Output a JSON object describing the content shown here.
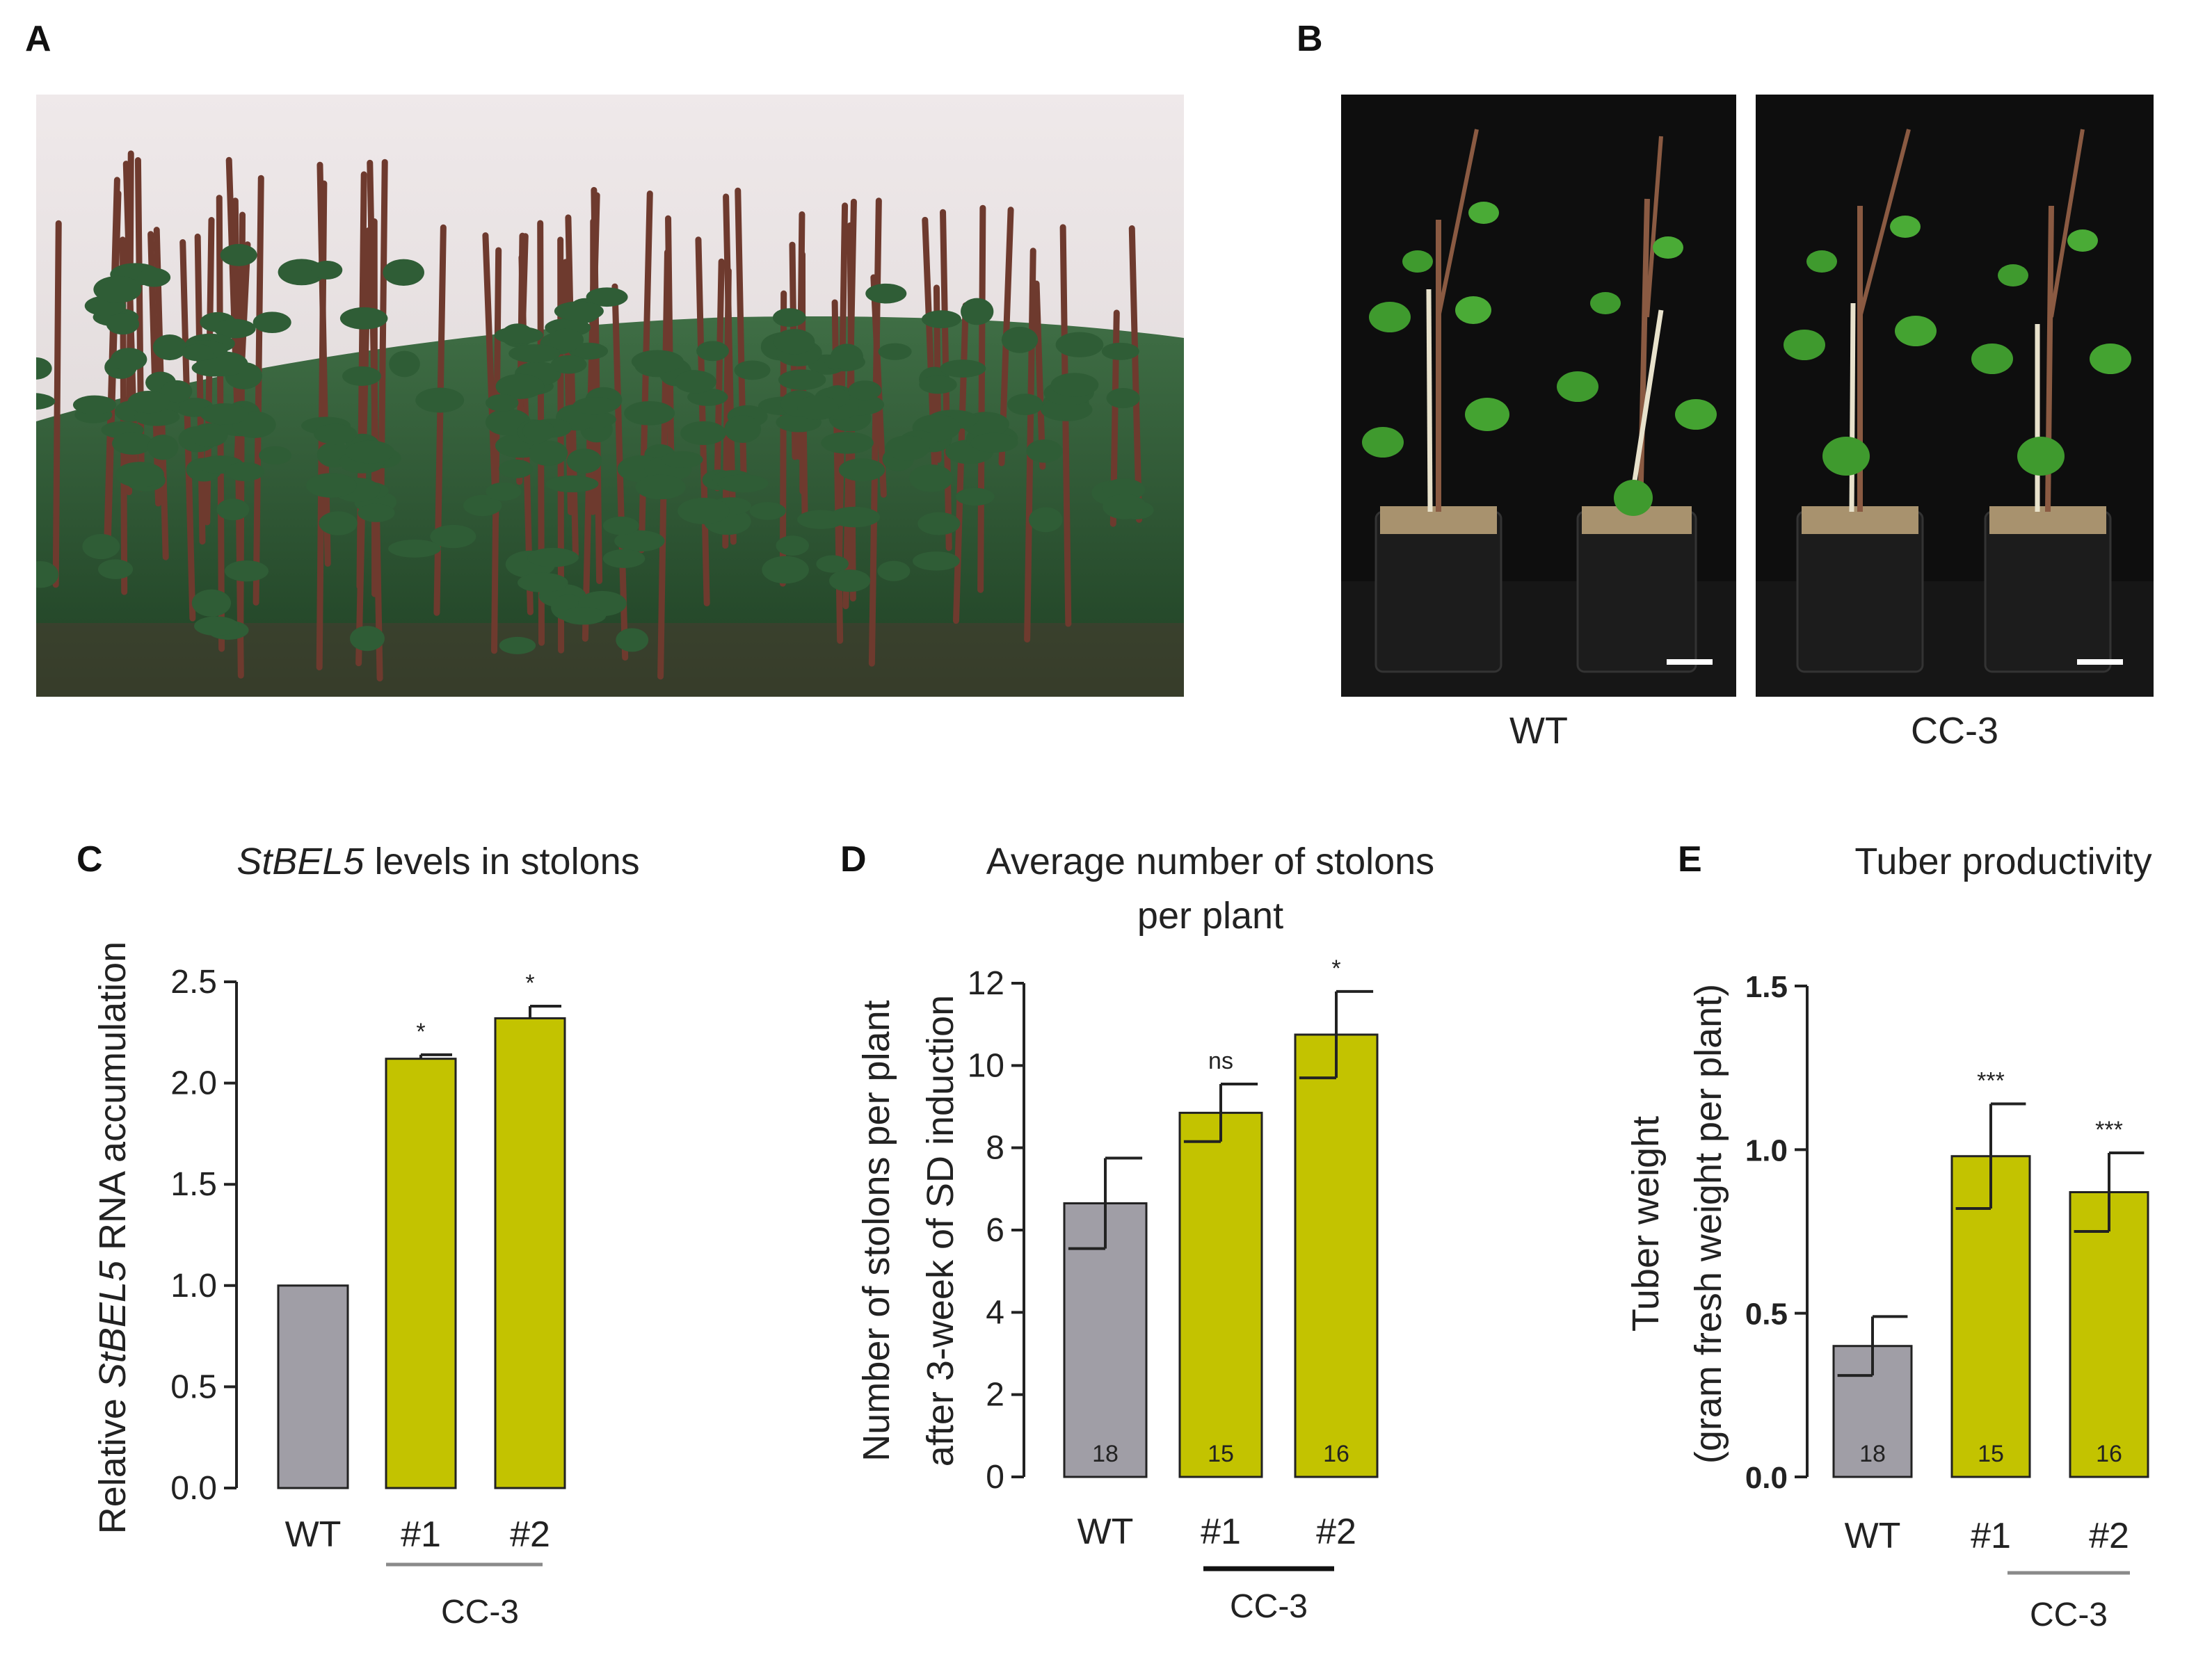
{
  "panels": {
    "a": {
      "letter": "A"
    },
    "b": {
      "letter": "B",
      "captions": [
        "WT",
        "CC-3"
      ]
    },
    "c": {
      "letter": "C",
      "title_italic": "StBEL5",
      "title_rest": " levels in stolons"
    },
    "d": {
      "letter": "D",
      "title_line1": "Average number of stolons",
      "title_line2": "per plant"
    },
    "e": {
      "letter": "E",
      "title": "Tuber productivity"
    }
  },
  "colors": {
    "wt_bar": "#a09ea6",
    "cc3_bar": "#c3c300",
    "axis": "#222222",
    "group_line_gray": "#8a8a8a",
    "group_line_black": "#111111"
  },
  "chart_data": [
    {
      "type": "bar",
      "id": "C",
      "title": "StBEL5 levels in stolons",
      "ylabel_parts": [
        "Relative ",
        "StBEL5",
        " RNA accumulation"
      ],
      "categories": [
        "WT",
        "#1",
        "#2"
      ],
      "values": [
        1.0,
        2.12,
        2.32
      ],
      "errors": [
        0,
        0.02,
        0.06
      ],
      "significance": [
        "",
        "*",
        "*"
      ],
      "n": [
        "",
        "",
        ""
      ],
      "ylim": [
        0,
        2.5
      ],
      "yticks": [
        0.0,
        0.5,
        1.0,
        1.5,
        2.0,
        2.5
      ],
      "ytick_labels": [
        "0.0",
        "0.5",
        "1.0",
        "1.5",
        "2.0",
        "2.5"
      ],
      "group_label": "CC-3"
    },
    {
      "type": "bar",
      "id": "D",
      "title": "Average number of stolons per plant",
      "ylabel_line1": "Number of stolons per plant",
      "ylabel_line2": "after 3-week of SD induction",
      "categories": [
        "WT",
        "#1",
        "#2"
      ],
      "values": [
        6.65,
        8.85,
        10.75
      ],
      "errors": [
        1.1,
        0.7,
        1.05
      ],
      "significance": [
        "",
        "ns",
        "*"
      ],
      "n": [
        "18",
        "15",
        "16"
      ],
      "ylim": [
        0,
        12
      ],
      "yticks": [
        0,
        2,
        4,
        6,
        8,
        10,
        12
      ],
      "ytick_labels": [
        "0",
        "2",
        "4",
        "6",
        "8",
        "10",
        "12"
      ],
      "group_label": "CC-3"
    },
    {
      "type": "bar",
      "id": "E",
      "title": "Tuber productivity",
      "ylabel_line1": "Tuber weight",
      "ylabel_line2": "(gram fresh weight per plant)",
      "categories": [
        "WT",
        "#1",
        "#2"
      ],
      "values": [
        0.4,
        0.98,
        0.87
      ],
      "errors": [
        0.09,
        0.16,
        0.12
      ],
      "significance": [
        "",
        "***",
        "***"
      ],
      "n": [
        "18",
        "15",
        "16"
      ],
      "ylim": [
        0,
        1.5
      ],
      "yticks": [
        0.0,
        0.5,
        1.0,
        1.5
      ],
      "ytick_labels": [
        "0.0",
        "0.5",
        "1.0",
        "1.5"
      ],
      "group_label": "CC-3"
    }
  ]
}
